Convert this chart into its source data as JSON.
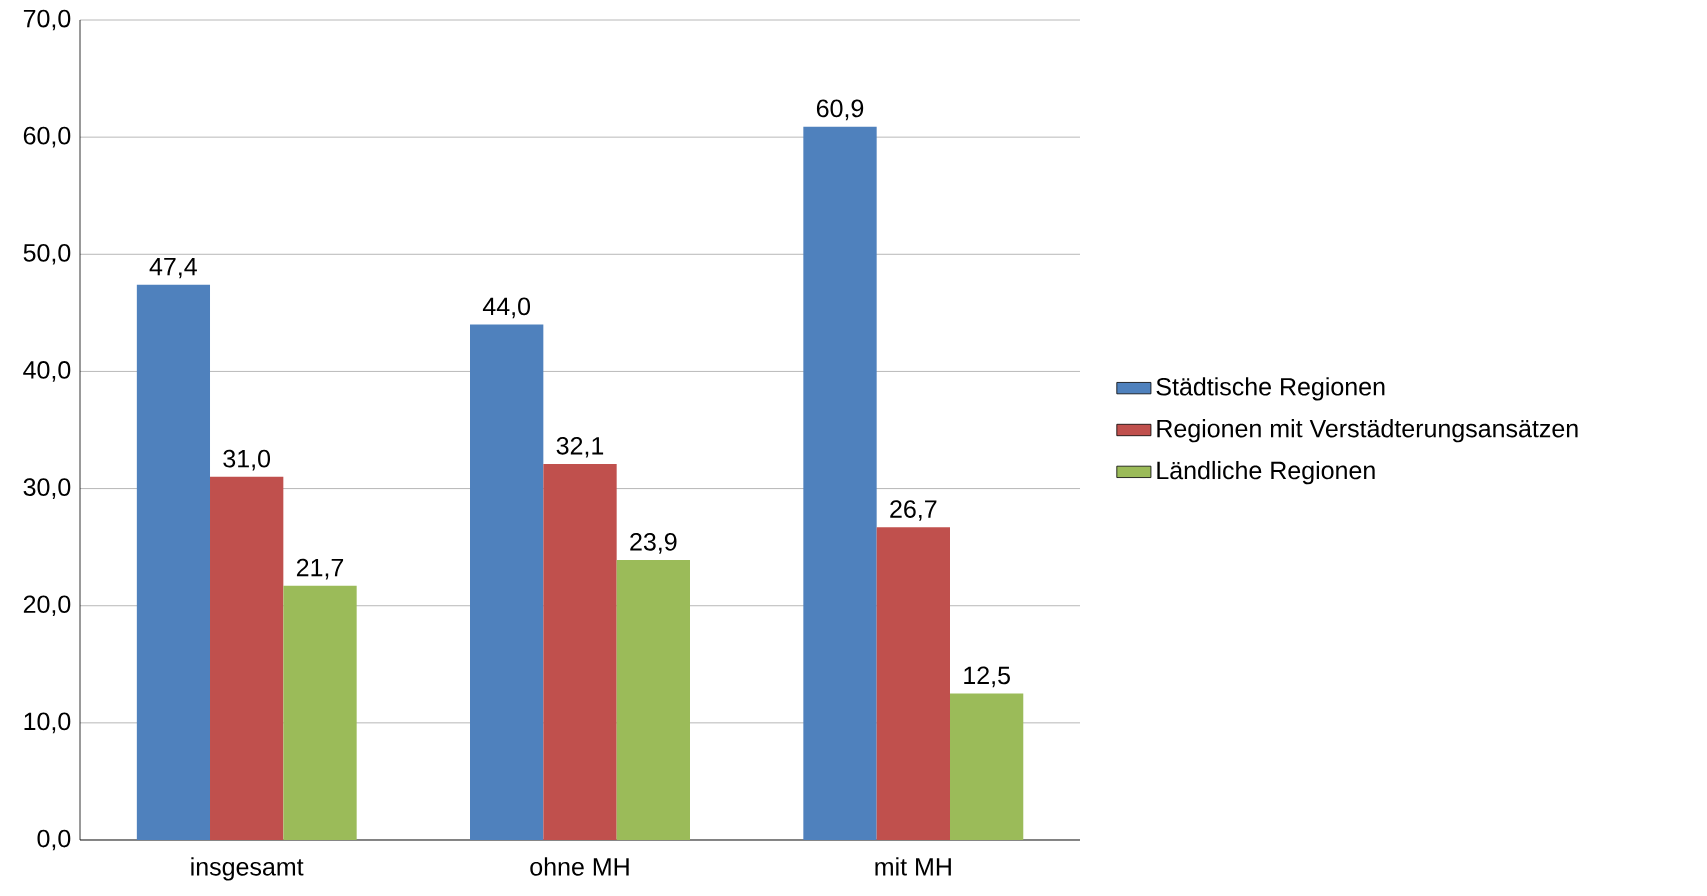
{
  "chart_data": {
    "type": "bar",
    "categories": [
      "insgesamt",
      "ohne MH",
      "mit MH"
    ],
    "series": [
      {
        "name": "Städtische Regionen",
        "color": "#4f81bd",
        "values": [
          47.4,
          44.0,
          60.9
        ],
        "value_labels": [
          "47,4",
          "44,0",
          "60,9"
        ]
      },
      {
        "name": "Regionen mit Verstädterungsansätzen",
        "color": "#c0504d",
        "values": [
          31.0,
          32.1,
          26.7
        ],
        "value_labels": [
          "31,0",
          "32,1",
          "26,7"
        ]
      },
      {
        "name": "Ländliche Regionen",
        "color": "#9bbb59",
        "values": [
          21.7,
          23.9,
          12.5
        ],
        "value_labels": [
          "21,7",
          "23,9",
          "12,5"
        ]
      }
    ],
    "ylim": [
      0,
      70
    ],
    "yticks": [
      {
        "value": 0,
        "label": "0,0"
      },
      {
        "value": 10,
        "label": "10,0"
      },
      {
        "value": 20,
        "label": "20,0"
      },
      {
        "value": 30,
        "label": "30,0"
      },
      {
        "value": 40,
        "label": "40,0"
      },
      {
        "value": 50,
        "label": "50,0"
      },
      {
        "value": 60,
        "label": "60,0"
      },
      {
        "value": 70,
        "label": "70,0"
      }
    ],
    "grid": "y",
    "legend": "right"
  }
}
